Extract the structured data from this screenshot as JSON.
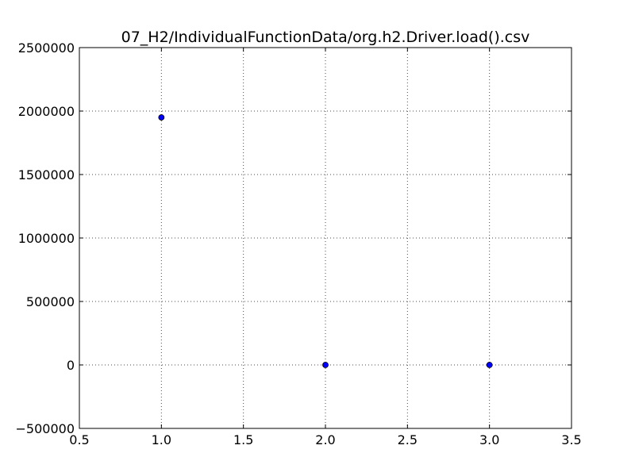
{
  "chart_data": {
    "type": "scatter",
    "title": "07_H2/IndividualFunctionData/org.h2.Driver.load().csv",
    "xlabel": "",
    "ylabel": "",
    "xlim": [
      0.5,
      3.5
    ],
    "ylim": [
      -500000,
      2500000
    ],
    "x_ticks": [
      0.5,
      1.0,
      1.5,
      2.0,
      2.5,
      3.0,
      3.5
    ],
    "x_tick_labels": [
      "0.5",
      "1.0",
      "1.5",
      "2.0",
      "2.5",
      "3.0",
      "3.5"
    ],
    "y_ticks": [
      -500000,
      0,
      500000,
      1000000,
      1500000,
      2000000,
      2500000
    ],
    "y_tick_labels": [
      "−500000",
      "0",
      "500000",
      "1000000",
      "1500000",
      "2000000",
      "2500000"
    ],
    "grid": true,
    "series": [
      {
        "color": "#0000ff",
        "points": [
          {
            "x": 1.0,
            "y": 1950000
          },
          {
            "x": 2.0,
            "y": 0
          },
          {
            "x": 3.0,
            "y": 0
          }
        ]
      }
    ]
  }
}
